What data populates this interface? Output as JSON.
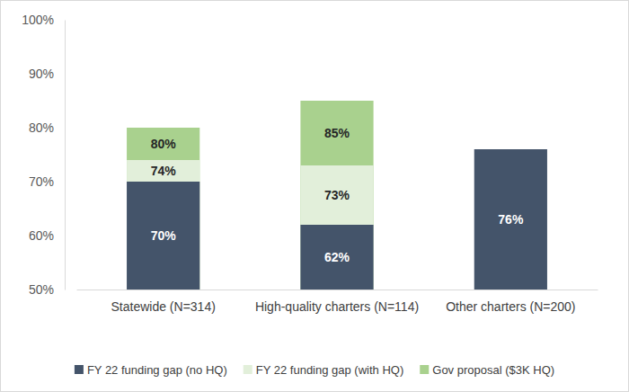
{
  "chart_data": {
    "type": "bar",
    "categories": [
      "Statewide (N=314)",
      "High-quality charters (N=114)",
      "Other charters (N=200)"
    ],
    "series": [
      {
        "name": "FY 22 funding gap (no HQ)",
        "color": "#44546a",
        "values": [
          70,
          62,
          76
        ],
        "value_labels": [
          "70%",
          "62%",
          "76%"
        ]
      },
      {
        "name": "FY 22 funding gap (with HQ)",
        "color": "#e2efda",
        "values": [
          74,
          73,
          null
        ],
        "value_labels": [
          "74%",
          "73%",
          null
        ]
      },
      {
        "name": "Gov proposal ($3K HQ)",
        "color": "#a9d18e",
        "values": [
          80,
          85,
          null
        ],
        "value_labels": [
          "80%",
          "85%",
          null
        ]
      }
    ],
    "ylim": [
      50,
      100
    ],
    "yticks": [
      {
        "value": 50,
        "label": "50%"
      },
      {
        "value": 60,
        "label": "60%"
      },
      {
        "value": 70,
        "label": "70%"
      },
      {
        "value": 80,
        "label": "80%"
      },
      {
        "value": 90,
        "label": "90%"
      },
      {
        "value": 100,
        "label": "100%"
      }
    ],
    "grid": false,
    "data_labels": true,
    "legend": "bottom"
  }
}
